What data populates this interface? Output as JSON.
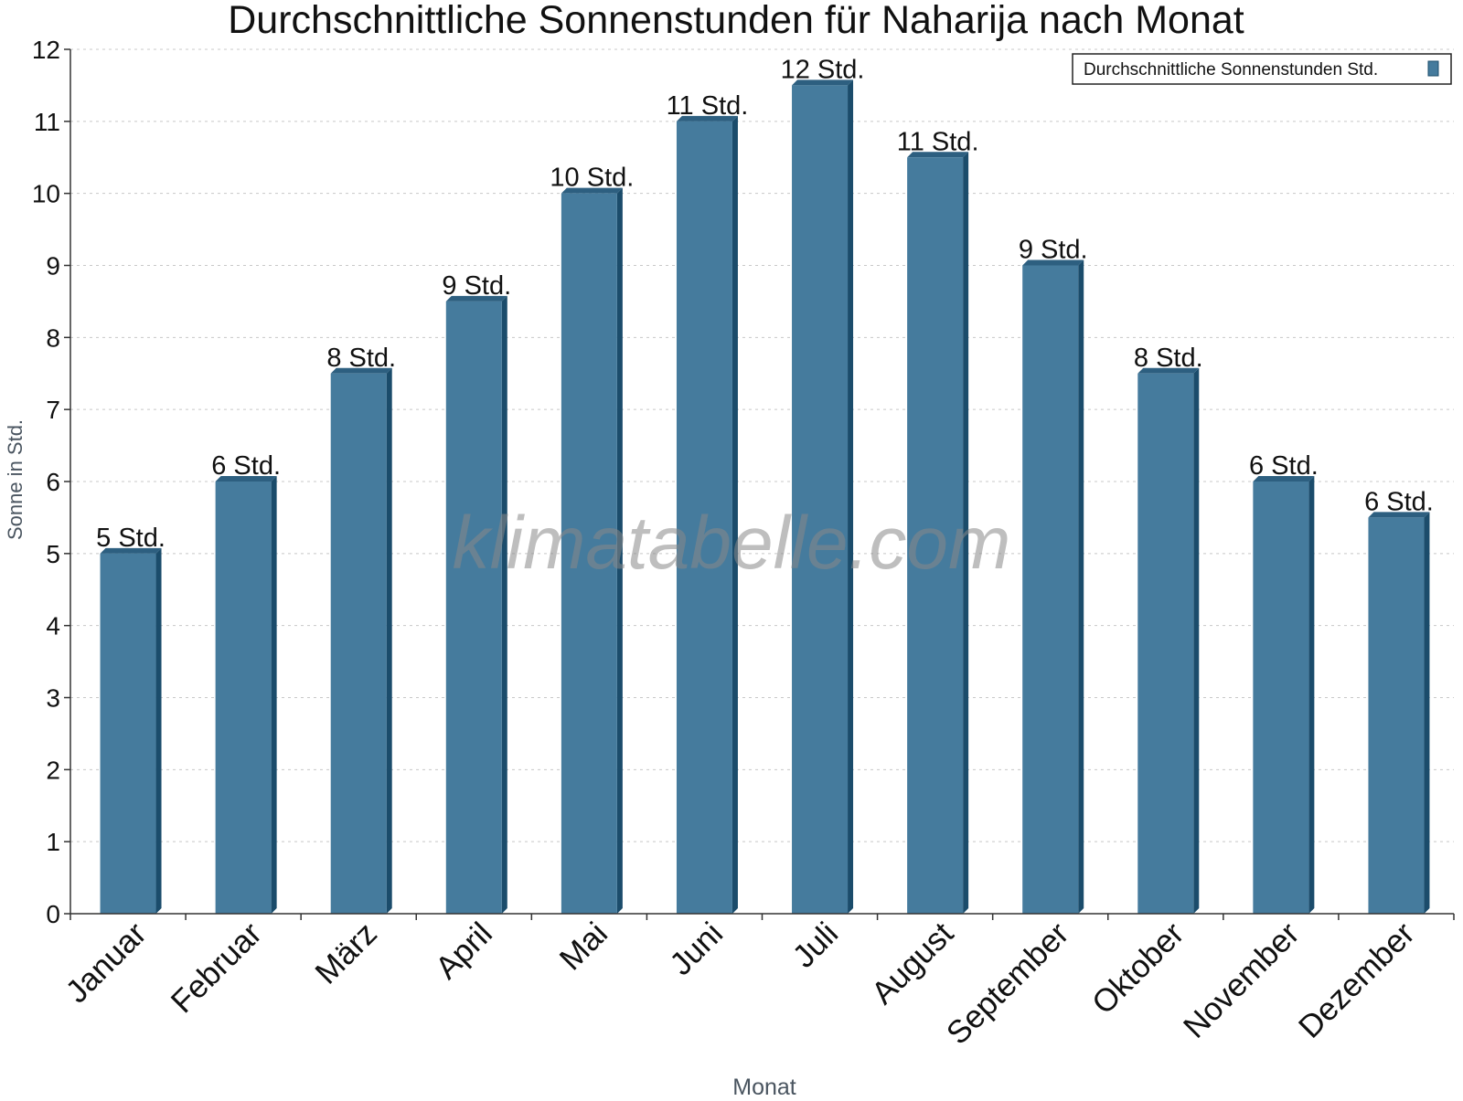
{
  "chart_data": {
    "type": "bar",
    "title": "Durchschnittliche Sonnenstunden für Naharija nach Monat",
    "xlabel": "Monat",
    "ylabel": "Sonne in Std.",
    "categories": [
      "Januar",
      "Februar",
      "März",
      "April",
      "Mai",
      "Juni",
      "Juli",
      "August",
      "September",
      "Oktober",
      "November",
      "Dezember"
    ],
    "series": [
      {
        "name": "Durchschnittliche Sonnenstunden Std.",
        "values": [
          5,
          6,
          7.5,
          8.5,
          10,
          11,
          11.5,
          10.5,
          9,
          7.5,
          6,
          5.5
        ],
        "labels": [
          "5 Std.",
          "6 Std.",
          "8 Std.",
          "9 Std.",
          "10 Std.",
          "11 Std.",
          "12 Std.",
          "11 Std.",
          "9 Std.",
          "8 Std.",
          "6 Std.",
          "6 Std."
        ],
        "color": "#457b9d"
      }
    ],
    "ylim": [
      0,
      12
    ],
    "yticks": [
      "0",
      "1",
      "2",
      "3",
      "4",
      "5",
      "6",
      "7",
      "8",
      "9",
      "10",
      "11",
      "12"
    ],
    "grid": true,
    "legend_position": "top-right",
    "colors": {
      "bar": "#457b9d",
      "bar_side": "#1b4c6b",
      "bar_top": "#2d5f80",
      "grid": "#c8c8c8",
      "axis": "#333333",
      "axis_title": "#4a5560"
    }
  },
  "watermark": "klimatabelle.com"
}
